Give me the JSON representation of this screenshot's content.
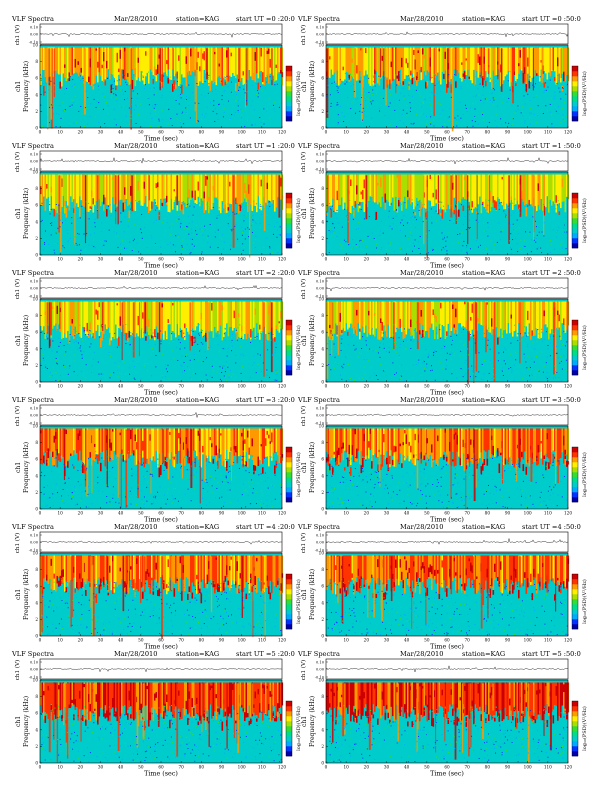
{
  "header_texts": {
    "title": "VLF Spectra",
    "date": "Mar/28/2010",
    "station": "station=KAG",
    "start_prefix": "start UT ="
  },
  "colorbar_label": "log₁₀(PSD)(V²/Hz)",
  "colors": {
    "background": "#00cccc",
    "spectrogram_palette": [
      "#0000aa",
      "#0033ff",
      "#00aaff",
      "#00cccc",
      "#00dd88",
      "#33dd33",
      "#aadd00",
      "#ffee00",
      "#ff9900",
      "#ff3300",
      "#cc0000"
    ]
  },
  "chart_data": [
    {
      "type": "heatmap",
      "title": "VLF Spectra",
      "date": "Mar/28/2010",
      "station": "station=KAG",
      "start_ut": "0 :20:0",
      "channel": "ch1",
      "top_ylabel": "ch1 (V)",
      "top_yticks": [
        "0.10",
        "0.00",
        "-0.10"
      ],
      "ylabel": "Frequency (kHz)",
      "xlabel": "Time (sec)",
      "xlim": [
        0,
        120
      ],
      "ylim": [
        0,
        10
      ],
      "xticks": [
        0,
        10,
        20,
        30,
        40,
        50,
        60,
        70,
        80,
        90,
        100,
        110,
        120
      ],
      "yticks": [
        0,
        2,
        4,
        6,
        8,
        10
      ],
      "colorbar_label": "log₁₀(PSD)(V²/Hz)",
      "activity": 0.5
    },
    {
      "type": "heatmap",
      "title": "VLF Spectra",
      "date": "Mar/28/2010",
      "station": "station=KAG",
      "start_ut": "0 :50:0",
      "channel": "ch1",
      "top_ylabel": "ch1 (V)",
      "top_yticks": [
        "0.10",
        "0.00",
        "-0.10"
      ],
      "ylabel": "Frequency (kHz)",
      "xlabel": "Time (sec)",
      "xlim": [
        0,
        120
      ],
      "ylim": [
        0,
        10
      ],
      "xticks": [
        0,
        10,
        20,
        30,
        40,
        50,
        60,
        70,
        80,
        90,
        100,
        110,
        120
      ],
      "yticks": [
        0,
        2,
        4,
        6,
        8,
        10
      ],
      "colorbar_label": "log₁₀(PSD)(V²/Hz)",
      "activity": 0.5
    },
    {
      "type": "heatmap",
      "title": "VLF Spectra",
      "date": "Mar/28/2010",
      "station": "station=KAG",
      "start_ut": "1 :20:0",
      "channel": "ch1",
      "top_ylabel": "ch1 (V)",
      "top_yticks": [
        "0.10",
        "0.00",
        "-0.10"
      ],
      "ylabel": "Frequency (kHz)",
      "xlabel": "Time (sec)",
      "xlim": [
        0,
        120
      ],
      "ylim": [
        0,
        10
      ],
      "xticks": [
        0,
        10,
        20,
        30,
        40,
        50,
        60,
        70,
        80,
        90,
        100,
        110,
        120
      ],
      "yticks": [
        0,
        2,
        4,
        6,
        8,
        10
      ],
      "colorbar_label": "log₁₀(PSD)(V²/Hz)",
      "activity": 0.38
    },
    {
      "type": "heatmap",
      "title": "VLF Spectra",
      "date": "Mar/28/2010",
      "station": "station=KAG",
      "start_ut": "1 :50:0",
      "channel": "ch1",
      "top_ylabel": "ch1 (V)",
      "top_yticks": [
        "0.10",
        "0.00",
        "-0.10"
      ],
      "ylabel": "Frequency (kHz)",
      "xlabel": "Time (sec)",
      "xlim": [
        0,
        120
      ],
      "ylim": [
        0,
        10
      ],
      "xticks": [
        0,
        10,
        20,
        30,
        40,
        50,
        60,
        70,
        80,
        90,
        100,
        110,
        120
      ],
      "yticks": [
        0,
        2,
        4,
        6,
        8,
        10
      ],
      "colorbar_label": "log₁₀(PSD)(V²/Hz)",
      "activity": 0.36
    },
    {
      "type": "heatmap",
      "title": "VLF Spectra",
      "date": "Mar/28/2010",
      "station": "station=KAG",
      "start_ut": "2 :20:0",
      "channel": "ch1",
      "top_ylabel": "ch1 (V)",
      "top_yticks": [
        "0.10",
        "0.00",
        "-0.10"
      ],
      "ylabel": "Frequency (kHz)",
      "xlabel": "Time (sec)",
      "xlim": [
        0,
        120
      ],
      "ylim": [
        0,
        10
      ],
      "xticks": [
        0,
        10,
        20,
        30,
        40,
        50,
        60,
        70,
        80,
        90,
        100,
        110,
        120
      ],
      "yticks": [
        0,
        2,
        4,
        6,
        8,
        10
      ],
      "colorbar_label": "log₁₀(PSD)(V²/Hz)",
      "activity": 0.4
    },
    {
      "type": "heatmap",
      "title": "VLF Spectra",
      "date": "Mar/28/2010",
      "station": "station=KAG",
      "start_ut": "2 :50:0",
      "channel": "ch1",
      "top_ylabel": "ch1 (V)",
      "top_yticks": [
        "0.10",
        "0.00",
        "-0.10"
      ],
      "ylabel": "Frequency (kHz)",
      "xlabel": "Time (sec)",
      "xlim": [
        0,
        120
      ],
      "ylim": [
        0,
        10
      ],
      "xticks": [
        0,
        10,
        20,
        30,
        40,
        50,
        60,
        70,
        80,
        90,
        100,
        110,
        120
      ],
      "yticks": [
        0,
        2,
        4,
        6,
        8,
        10
      ],
      "colorbar_label": "log₁₀(PSD)(V²/Hz)",
      "activity": 0.42
    },
    {
      "type": "heatmap",
      "title": "VLF Spectra",
      "date": "Mar/28/2010",
      "station": "station=KAG",
      "start_ut": "3 :20:0",
      "channel": "ch1",
      "top_ylabel": "ch1 (V)",
      "top_yticks": [
        "0.10",
        "0.00",
        "-0.10"
      ],
      "ylabel": "Frequency (kHz)",
      "xlabel": "Time (sec)",
      "xlim": [
        0,
        120
      ],
      "ylim": [
        0,
        10
      ],
      "xticks": [
        0,
        10,
        20,
        30,
        40,
        50,
        60,
        70,
        80,
        90,
        100,
        110,
        120
      ],
      "yticks": [
        0,
        2,
        4,
        6,
        8,
        10
      ],
      "colorbar_label": "log₁₀(PSD)(V²/Hz)",
      "activity": 0.62
    },
    {
      "type": "heatmap",
      "title": "VLF Spectra",
      "date": "Mar/28/2010",
      "station": "station=KAG",
      "start_ut": "3 :50:0",
      "channel": "ch1",
      "top_ylabel": "ch1 (V)",
      "top_yticks": [
        "0.10",
        "0.00",
        "-0.10"
      ],
      "ylabel": "Frequency (kHz)",
      "xlabel": "Time (sec)",
      "xlim": [
        0,
        120
      ],
      "ylim": [
        0,
        10
      ],
      "xticks": [
        0,
        10,
        20,
        30,
        40,
        50,
        60,
        70,
        80,
        90,
        100,
        110,
        120
      ],
      "yticks": [
        0,
        2,
        4,
        6,
        8,
        10
      ],
      "colorbar_label": "log₁₀(PSD)(V²/Hz)",
      "activity": 0.62
    },
    {
      "type": "heatmap",
      "title": "VLF Spectra",
      "date": "Mar/28/2010",
      "station": "station=KAG",
      "start_ut": "4 :20:0",
      "channel": "ch1",
      "top_ylabel": "ch1 (V)",
      "top_yticks": [
        "0.10",
        "0.00",
        "-0.10"
      ],
      "ylabel": "Frequency (kHz)",
      "xlabel": "Time (sec)",
      "xlim": [
        0,
        120
      ],
      "ylim": [
        0,
        10
      ],
      "xticks": [
        0,
        10,
        20,
        30,
        40,
        50,
        60,
        70,
        80,
        90,
        100,
        110,
        120
      ],
      "yticks": [
        0,
        2,
        4,
        6,
        8,
        10
      ],
      "colorbar_label": "log₁₀(PSD)(V²/Hz)",
      "activity": 0.66
    },
    {
      "type": "heatmap",
      "title": "VLF Spectra",
      "date": "Mar/28/2010",
      "station": "station=KAG",
      "start_ut": "4 :50:0",
      "channel": "ch1",
      "top_ylabel": "ch1 (V)",
      "top_yticks": [
        "0.10",
        "0.00",
        "-0.10"
      ],
      "ylabel": "Frequency (kHz)",
      "xlabel": "Time (sec)",
      "xlim": [
        0,
        120
      ],
      "ylim": [
        0,
        10
      ],
      "xticks": [
        0,
        10,
        20,
        30,
        40,
        50,
        60,
        70,
        80,
        90,
        100,
        110,
        120
      ],
      "yticks": [
        0,
        2,
        4,
        6,
        8,
        10
      ],
      "colorbar_label": "log₁₀(PSD)(V²/Hz)",
      "activity": 0.68
    },
    {
      "type": "heatmap",
      "title": "VLF Spectra",
      "date": "Mar/28/2010",
      "station": "station=KAG",
      "start_ut": "5 :20:0",
      "channel": "ch1",
      "top_ylabel": "ch1 (V)",
      "top_yticks": [
        "0.10",
        "0.00",
        "-0.10"
      ],
      "ylabel": "Frequency (kHz)",
      "xlabel": "Time (sec)",
      "xlim": [
        0,
        120
      ],
      "ylim": [
        0,
        10
      ],
      "xticks": [
        0,
        10,
        20,
        30,
        40,
        50,
        60,
        70,
        80,
        90,
        100,
        110,
        120
      ],
      "yticks": [
        0,
        2,
        4,
        6,
        8,
        10
      ],
      "colorbar_label": "log₁₀(PSD)(V²/Hz)",
      "activity": 0.8
    },
    {
      "type": "heatmap",
      "title": "VLF Spectra",
      "date": "Mar/28/2010",
      "station": "station=KAG",
      "start_ut": "5 :50:0",
      "channel": "ch1",
      "top_ylabel": "ch1 (V)",
      "top_yticks": [
        "0.10",
        "0.00",
        "-0.10"
      ],
      "ylabel": "Frequency (kHz)",
      "xlabel": "Time (sec)",
      "xlim": [
        0,
        120
      ],
      "ylim": [
        0,
        10
      ],
      "xticks": [
        0,
        10,
        20,
        30,
        40,
        50,
        60,
        70,
        80,
        90,
        100,
        110,
        120
      ],
      "yticks": [
        0,
        2,
        4,
        6,
        8,
        10
      ],
      "colorbar_label": "log₁₀(PSD)(V²/Hz)",
      "activity": 0.84
    }
  ]
}
